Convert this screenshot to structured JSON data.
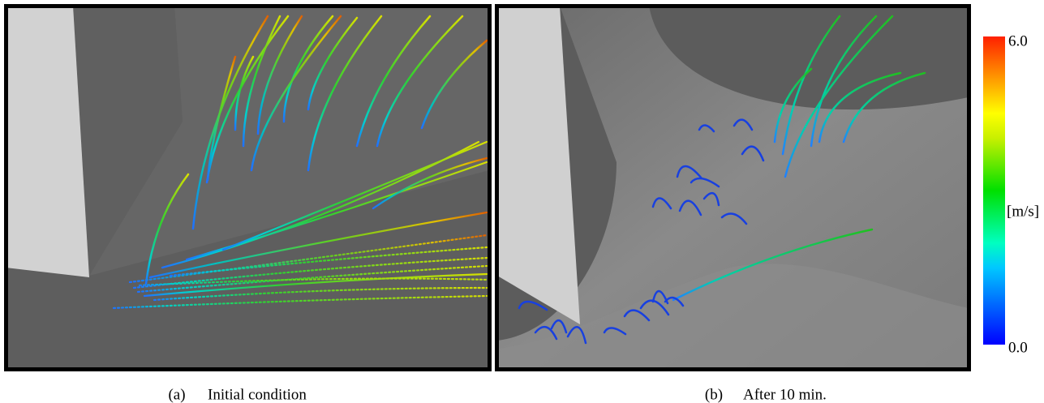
{
  "panels": [
    {
      "label": "(a)",
      "caption": "Initial condition"
    },
    {
      "label": "(b)",
      "caption": "After 10 min."
    }
  ],
  "colorbar": {
    "top_label": "6.0",
    "bottom_label": "0.0",
    "unit": "[m/s]"
  }
}
